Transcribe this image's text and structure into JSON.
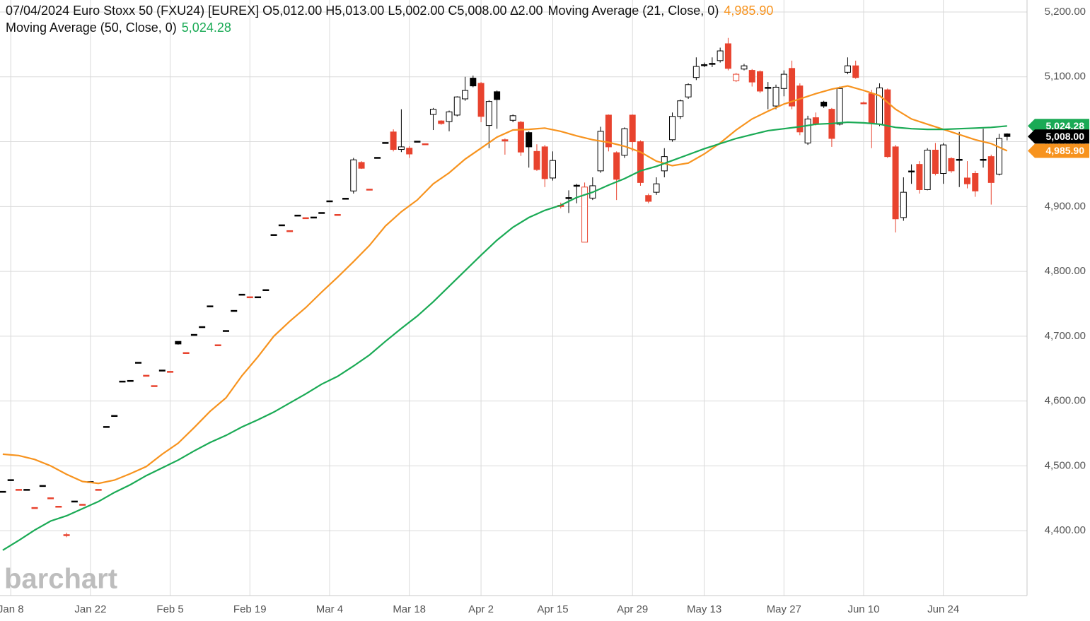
{
  "chart_data": {
    "type": "candlestick",
    "header": "07/04/2024 Euro Stoxx 50 (FXU24) [EUREX] O5,012.00 H5,013.00 L5,002.00 C5,008.00 ∆2.00",
    "watermark": "barchart",
    "grid": true,
    "up_color": "#000000",
    "down_color": "#e8432e",
    "last_close_label": "5,008.00",
    "xlim": [
      -0.35,
      128.5
    ],
    "ylim": [
      4300,
      5218.5
    ],
    "yticks": [
      {
        "value": 4400,
        "label": "4,400.00"
      },
      {
        "value": 4500,
        "label": "4,500.00"
      },
      {
        "value": 4600,
        "label": "4,600.00"
      },
      {
        "value": 4700,
        "label": "4,700.00"
      },
      {
        "value": 4800,
        "label": "4,800.00"
      },
      {
        "value": 4900,
        "label": "4,900.00"
      },
      {
        "value": 5000,
        "label": "5,000.00"
      },
      {
        "value": 5100,
        "label": "5,100.00"
      },
      {
        "value": 5200,
        "label": "5,200.00"
      }
    ],
    "xticks": [
      {
        "value": 1,
        "label": "Jan 8"
      },
      {
        "value": 11,
        "label": "Jan 22"
      },
      {
        "value": 21,
        "label": "Feb 5"
      },
      {
        "value": 31,
        "label": "Feb 19"
      },
      {
        "value": 41,
        "label": "Mar 4"
      },
      {
        "value": 51,
        "label": "Mar 18"
      },
      {
        "value": 60,
        "label": "Apr 2"
      },
      {
        "value": 69,
        "label": "Apr 15"
      },
      {
        "value": 79,
        "label": "Apr 29"
      },
      {
        "value": 88,
        "label": "May 13"
      },
      {
        "value": 98,
        "label": "May 27"
      },
      {
        "value": 108,
        "label": "Jun 10"
      },
      {
        "value": 118,
        "label": "Jun 24"
      }
    ],
    "x": [
      0,
      1,
      2,
      3,
      4,
      5,
      6,
      7,
      8,
      9,
      10,
      11,
      12,
      13,
      14,
      15,
      16,
      17,
      18,
      19,
      20,
      21,
      22,
      23,
      24,
      25,
      26,
      27,
      28,
      29,
      30,
      31,
      32,
      33,
      34,
      35,
      36,
      37,
      38,
      39,
      40,
      41,
      42,
      43,
      44,
      45,
      46,
      47,
      48,
      49,
      50,
      51,
      52,
      53,
      54,
      55,
      56,
      57,
      58,
      59,
      60,
      61,
      62,
      63,
      64,
      65,
      66,
      67,
      68,
      69,
      70,
      71,
      72,
      73,
      74,
      75,
      76,
      77,
      78,
      79,
      80,
      81,
      82,
      83,
      84,
      85,
      86,
      87,
      88,
      89,
      90,
      91,
      92,
      93,
      94,
      95,
      96,
      97,
      98,
      99,
      100,
      101,
      102,
      103,
      104,
      105,
      106,
      107,
      108,
      109,
      110,
      111,
      112,
      113,
      114,
      115,
      116,
      117,
      118,
      119,
      120,
      121,
      122,
      123,
      124,
      125,
      126
    ],
    "open": [
      4460,
      4478,
      4463,
      4463,
      4435,
      4469,
      4450,
      4437,
      4394,
      4445,
      4440,
      4475,
      4463,
      4560,
      4577,
      4630,
      4631,
      4659,
      4639,
      4623,
      4647,
      4645,
      4692,
      4674,
      4702,
      4714,
      4746,
      4686,
      4708,
      4739,
      4764,
      4760,
      4760,
      4771,
      4856,
      4871,
      4862,
      4886,
      4882,
      4883,
      4890,
      4908,
      4887,
      4912,
      4924,
      4968,
      4926,
      4975,
      4998,
      5015,
      4988,
      4990,
      5000,
      4996,
      5042,
      5032,
      5031,
      5041,
      5066,
      5098,
      5090,
      5025,
      5077,
      5003,
      5033,
      5030,
      5014,
      4985,
      4992,
      4944,
      4902,
      4913,
      4932,
      4845,
      4913,
      4955,
      5041,
      4983,
      4979,
      5041,
      5000,
      4917,
      4922,
      4955,
      5003,
      5039,
      5069,
      5099,
      5118,
      5120,
      5125,
      5151,
      5094,
      5112,
      5110,
      5108,
      5083,
      5055,
      5082,
      5113,
      5086,
      4998,
      5037,
      5061,
      5050,
      5027,
      5107,
      5117,
      5060,
      5074,
      5027,
      5080,
      4992,
      4883,
      4954,
      4965,
      4926,
      4987,
      4951,
      4974,
      4972,
      4944,
      4951,
      4972,
      4977,
      4950,
      5012
    ],
    "high": [
      4460,
      4478,
      4463,
      4463,
      4435,
      4469,
      4450,
      4437,
      4397,
      4445,
      4440,
      4475,
      4463,
      4560,
      4577,
      4630,
      4631,
      4659,
      4639,
      4623,
      4647,
      4645,
      4692,
      4674,
      4702,
      4714,
      4746,
      4686,
      4708,
      4739,
      4764,
      4760,
      4760,
      4771,
      4856,
      4871,
      4862,
      4886,
      4882,
      4883,
      4890,
      4908,
      4887,
      4912,
      4975,
      4970,
      4926,
      4975,
      4998,
      5019,
      5050,
      4993,
      5000,
      4996,
      5052,
      5033,
      5048,
      5070,
      5100,
      5102,
      5092,
      5064,
      5079,
      5005,
      5042,
      5032,
      5016,
      4996,
      4995,
      4985,
      4906,
      4925,
      4935,
      4937,
      4945,
      5023,
      5042,
      4985,
      5022,
      5042,
      5002,
      4920,
      4945,
      4990,
      5045,
      5065,
      5090,
      5130,
      5122,
      5130,
      5145,
      5160,
      5106,
      5120,
      5112,
      5110,
      5092,
      5088,
      5110,
      5125,
      5090,
      5040,
      5045,
      5063,
      5052,
      5085,
      5130,
      5125,
      5062,
      5080,
      5090,
      5082,
      4995,
      4945,
      4965,
      4970,
      4990,
      4998,
      4998,
      4976,
      5015,
      4970,
      4955,
      5020,
      4980,
      5012,
      5013
    ],
    "low": [
      4460,
      4478,
      4463,
      4463,
      4435,
      4469,
      4450,
      4437,
      4390,
      4445,
      4440,
      4475,
      4463,
      4560,
      4577,
      4630,
      4631,
      4659,
      4639,
      4623,
      4647,
      4645,
      4687,
      4674,
      4702,
      4714,
      4746,
      4686,
      4708,
      4739,
      4764,
      4760,
      4760,
      4771,
      4856,
      4871,
      4862,
      4886,
      4882,
      4883,
      4890,
      4908,
      4887,
      4912,
      4920,
      4958,
      4926,
      4975,
      4998,
      4985,
      4984,
      4975,
      5000,
      4996,
      5018,
      5026,
      5016,
      5039,
      5063,
      5084,
      5030,
      4990,
      5020,
      4980,
      5030,
      4978,
      4960,
      4955,
      4930,
      4940,
      4897,
      4890,
      4905,
      4845,
      4910,
      4952,
      4985,
      4910,
      4975,
      4985,
      4932,
      4905,
      4918,
      4945,
      5000,
      5035,
      5066,
      5095,
      5115,
      5115,
      5122,
      5110,
      5092,
      5110,
      5085,
      5075,
      5050,
      5050,
      5070,
      5050,
      5010,
      4995,
      5025,
      5052,
      4992,
      5025,
      5104,
      5097,
      5058,
      4990,
      5024,
      4975,
      4860,
      4878,
      4935,
      4920,
      4925,
      4948,
      4935,
      4952,
      4930,
      4928,
      4915,
      4960,
      4903,
      4948,
      5002
    ],
    "close": [
      4460,
      4478,
      4463,
      4463,
      4435,
      4469,
      4450,
      4437,
      4393,
      4445,
      4440,
      4475,
      4463,
      4560,
      4577,
      4630,
      4631,
      4659,
      4639,
      4623,
      4647,
      4645,
      4688,
      4674,
      4702,
      4714,
      4746,
      4686,
      4708,
      4739,
      4764,
      4760,
      4760,
      4771,
      4856,
      4871,
      4862,
      4886,
      4882,
      4883,
      4890,
      4908,
      4887,
      4912,
      4972,
      4959,
      4926,
      4975,
      4998,
      4988,
      4992,
      4981,
      5000,
      4996,
      5050,
      5028,
      5046,
      5069,
      5079,
      5086,
      5039,
      5062,
      5065,
      5001,
      5040,
      4984,
      4992,
      4957,
      4943,
      4971,
      4900,
      4913,
      4932,
      4930,
      4932,
      5016,
      4992,
      4942,
      5020,
      5000,
      4937,
      4908,
      4935,
      4977,
      5039,
      5063,
      5088,
      5116,
      5118,
      5120,
      5140,
      5113,
      5104,
      5117,
      5092,
      5078,
      5083,
      5084,
      5104,
      5055,
      5015,
      5035,
      5027,
      5055,
      5005,
      5082,
      5117,
      5099,
      5059,
      5028,
      5083,
      4977,
      4881,
      4922,
      4954,
      4926,
      4987,
      4951,
      4995,
      4955,
      4972,
      4935,
      4924,
      4972,
      4937,
      5005,
      5008
    ],
    "series": [
      {
        "name": "Moving Average  (21, Close, 0)",
        "color": "#f7931e",
        "last_label": "4,985.90",
        "x": [
          0,
          2,
          4,
          6,
          8,
          10,
          12,
          14,
          16,
          18,
          20,
          22,
          24,
          26,
          28,
          30,
          32,
          34,
          36,
          38,
          40,
          42,
          44,
          46,
          48,
          50,
          52,
          54,
          56,
          58,
          60,
          62,
          64,
          66,
          68,
          70,
          72,
          74,
          76,
          78,
          80,
          82,
          84,
          86,
          88,
          90,
          92,
          94,
          96,
          98,
          100,
          102,
          104,
          106,
          108,
          110,
          112,
          114,
          116,
          118,
          120,
          122,
          124,
          126
        ],
        "values": [
          4518,
          4516,
          4510,
          4500,
          4487,
          4476,
          4473,
          4478,
          4488,
          4499,
          4518,
          4535,
          4559,
          4584,
          4605,
          4639,
          4668,
          4700,
          4723,
          4744,
          4768,
          4791,
          4815,
          4840,
          4870,
          4892,
          4910,
          4935,
          4952,
          4973,
          4990,
          5007,
          5018,
          5019,
          5021,
          5016,
          5009,
          5003,
          4999,
          4993,
          4984,
          4970,
          4963,
          4967,
          4981,
          4998,
          5018,
          5035,
          5047,
          5058,
          5066,
          5074,
          5081,
          5086,
          5079,
          5071,
          5050,
          5035,
          5027,
          5019,
          5011,
          5003,
          4997,
          4985.9
        ]
      },
      {
        "name": "Moving Average  (50, Close, 0)",
        "color": "#1aaa55",
        "last_label": "5,024.28",
        "x": [
          0,
          2,
          4,
          6,
          8,
          10,
          12,
          14,
          16,
          18,
          20,
          22,
          24,
          26,
          28,
          30,
          32,
          34,
          36,
          38,
          40,
          42,
          44,
          46,
          48,
          50,
          52,
          54,
          56,
          58,
          60,
          62,
          64,
          66,
          68,
          70,
          72,
          74,
          76,
          78,
          80,
          82,
          84,
          86,
          88,
          90,
          92,
          94,
          96,
          98,
          100,
          102,
          104,
          106,
          108,
          110,
          112,
          114,
          116,
          118,
          120,
          122,
          124,
          126
        ],
        "values": [
          4370,
          4385,
          4401,
          4415,
          4423,
          4434,
          4445,
          4459,
          4471,
          4485,
          4497,
          4509,
          4523,
          4536,
          4547,
          4560,
          4571,
          4583,
          4597,
          4611,
          4626,
          4638,
          4654,
          4671,
          4692,
          4712,
          4731,
          4753,
          4777,
          4801,
          4825,
          4848,
          4868,
          4883,
          4894,
          4902,
          4914,
          4922,
          4933,
          4943,
          4955,
          4962,
          4971,
          4980,
          4989,
          4997,
          5005,
          5011,
          5017,
          5020,
          5023,
          5027,
          5028,
          5030,
          5029,
          5027,
          5022,
          5020,
          5019,
          5019,
          5020,
          5021,
          5022,
          5024.28
        ]
      }
    ]
  }
}
